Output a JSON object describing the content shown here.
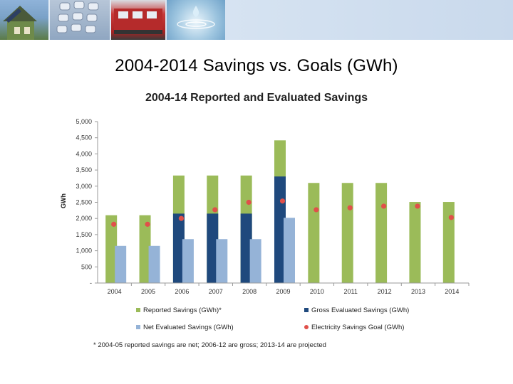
{
  "slide_title": "2004-2014 Savings vs. Goals (GWh)",
  "footnote": "* 2004-05 reported savings are net; 2006-12 are gross; 2013-14 are projected",
  "colors": {
    "reported": "#9bbb59",
    "gross": "#1f497d",
    "net": "#95b3d7",
    "goal": "#e0504a",
    "banner": "#d7e4f2"
  },
  "icons": [
    "house-photo-icon",
    "phone-keypad-photo-icon",
    "train-photo-icon",
    "water-drop-photo-icon"
  ],
  "chart_data": {
    "type": "bar",
    "title": "2004-14 Reported and Evaluated Savings",
    "xlabel": "",
    "ylabel": "GWh",
    "ylim": [
      0,
      5000
    ],
    "yticks": [
      0,
      500,
      1000,
      1500,
      2000,
      2500,
      3000,
      3500,
      4000,
      4500,
      5000
    ],
    "yticklabels": [
      "-",
      "500",
      "1,000",
      "1,500",
      "2,000",
      "2,500",
      "3,000",
      "3,500",
      "4,000",
      "4,500",
      "5,000"
    ],
    "categories": [
      "2004",
      "2005",
      "2006",
      "2007",
      "2008",
      "2009",
      "2010",
      "2011",
      "2012",
      "2013",
      "2014"
    ],
    "legend_position": "bottom",
    "series": [
      {
        "name": "Reported Savings (GWh)*",
        "type": "bar",
        "values": [
          2100,
          2100,
          3330,
          3330,
          3330,
          4420,
          3100,
          3100,
          3100,
          2510,
          2510
        ]
      },
      {
        "name": "Gross Evaluated Savings (GWh)",
        "type": "bar",
        "values": [
          null,
          null,
          2150,
          2150,
          2150,
          3300,
          null,
          null,
          null,
          null,
          null
        ]
      },
      {
        "name": "Net Evaluated Savings (GWh)",
        "type": "bar",
        "values": [
          1150,
          1150,
          1360,
          1360,
          1360,
          2020,
          null,
          null,
          null,
          null,
          null
        ]
      },
      {
        "name": "Electricity Savings Goal (GWh)",
        "type": "scatter",
        "values": [
          1820,
          1820,
          2000,
          2270,
          2500,
          2540,
          2270,
          2330,
          2380,
          2380,
          2030
        ]
      }
    ]
  }
}
